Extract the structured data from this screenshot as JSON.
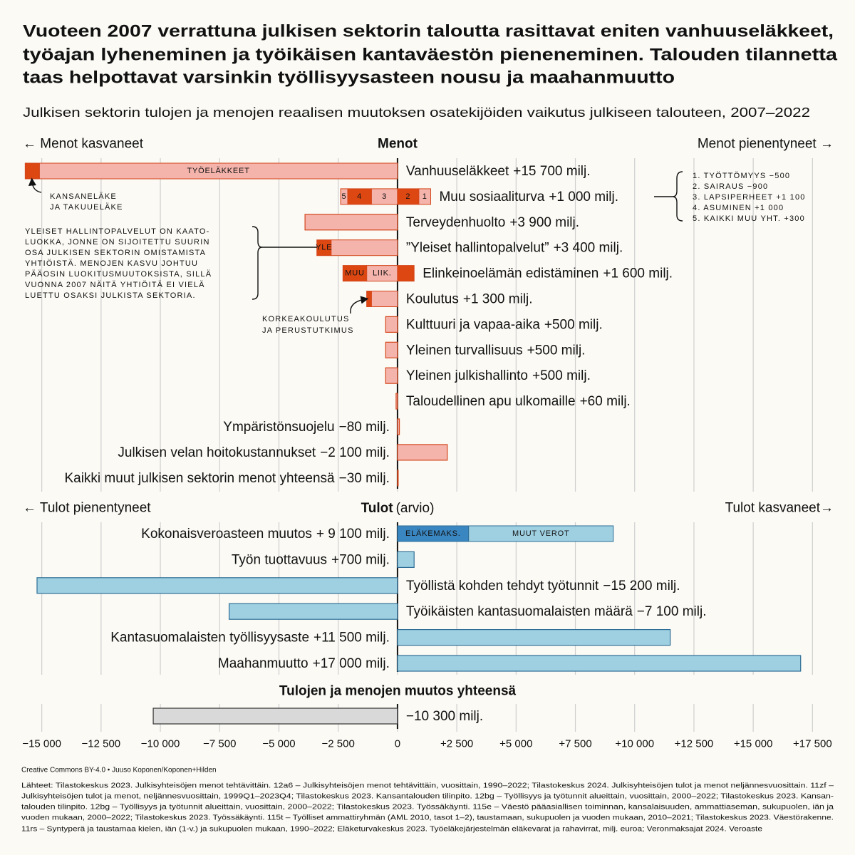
{
  "title": [
    "Vuoteen 2007 verrattuna julkisen sektorin taloutta rasittavat eniten vanhuuseläkkeet,",
    "työajan lyheneminen ja työikäisen kantaväestön pieneneminen. Talouden tilannetta",
    "taas helpottavat varsinkin työllisyysasteen nousu ja maahanmuutto"
  ],
  "subtitle": "Julkisen sektorin tulojen ja menojen reaalisen muutoksen osatekijöiden vaikutus julkiseen talouteen, 2007–2022",
  "chart_data": [
    {
      "type": "bar",
      "title": "Menot",
      "left_label": "← Menot kasvaneet",
      "right_label": "Menot pienentyneet →",
      "xlim": [
        -18000,
        15500
      ],
      "xreverse": true,
      "grid": true,
      "color": "#f4b3ab",
      "stroke": "#d4471c",
      "categories": [
        "Vanhuuseläkkeet",
        "Muu sosiaaliturva",
        "Terveydenhuolto",
        "”Yleiset hallintopalvelut”",
        "Elinkeinoelämän edistäminen",
        "Koulutus",
        "Kulttuuri ja vapaa-aika",
        "Yleinen turvallisuus",
        "Yleinen julkishallinto",
        "Taloudellinen apu ulkomaille",
        "Ympäristönsuojelu",
        "Julkisen velan hoitokustannukset",
        "Kaikki muut julkisen sektorin menot yhteensä"
      ],
      "values": [
        15700,
        1000,
        3900,
        3400,
        1600,
        1300,
        500,
        500,
        500,
        60,
        -80,
        -2100,
        -30
      ],
      "value_labels": [
        "+15 700 milj.",
        "+1 000 milj.",
        "+3 900 milj.",
        "+3 400 milj.",
        "+1 600 milj.",
        "+1 300 milj.",
        "+500 milj.",
        "+500 milj.",
        "+500 milj.",
        "+60 milj.",
        "−80 milj.",
        "−2 100 milj.",
        "−30 milj."
      ],
      "segments": [
        [
          {
            "value": 15100,
            "label": "TYÖELÄKKEET",
            "color": "#f4b3ab"
          },
          {
            "value": 600,
            "color": "#dd4712"
          }
        ],
        [
          {
            "value": 1100,
            "label": "3",
            "color": "#f4b3ab"
          },
          {
            "value": 1000,
            "label": "4",
            "color": "#dd4712"
          },
          {
            "value": 300,
            "label": "5",
            "color": "#f4b3ab"
          },
          {
            "value": -900,
            "label": "2",
            "color": "#dd4712"
          },
          {
            "value": -500,
            "label": "1",
            "color": "#f4b3ab"
          }
        ],
        null,
        [
          {
            "value": 2800,
            "color": "#f4b3ab"
          },
          {
            "value": 600,
            "label": "YLE",
            "color": "#dd4712"
          }
        ],
        [
          {
            "value": 1300,
            "label": "LIIK.",
            "color": "#f4b3ab"
          },
          {
            "value": 1000,
            "label": "MUU",
            "color": "#dd4712"
          },
          {
            "value": -700,
            "color": "#dd4712"
          }
        ],
        [
          {
            "value": 1100,
            "color": "#f4b3ab"
          },
          {
            "value": 200,
            "color": "#dd4712"
          }
        ],
        null,
        null,
        null,
        null,
        null,
        null,
        null
      ],
      "annotations": [
        [
          "KANSANELÄKE",
          "JA TAKUUELÄKE"
        ],
        [
          "1. TYÖTTÖMYYS −500",
          "2. SAIRAUS −900",
          "3. LAPSIPERHEET +1 100",
          "4. ASUMINEN +1 000",
          "5. KAIKKI MUU YHT. +300"
        ],
        [
          "YLEISET HALLINTOPALVELUT ON KAATO-",
          "LUOKKA, JONNE ON SIJOITETTU SUURIN",
          "OSA JULKISEN SEKTORIN OMISTAMISTA",
          "YHTIÖISTÄ. MENOJEN KASVU JOHTUU",
          "PÄÄOSIN LUOKITUSMUUTOKSISTA, SILLÄ",
          "VUONNA 2007 NÄITÄ YHTIÖITÄ EI VIELÄ",
          "LUETTU OSAKSI JULKISTA SEKTORIA."
        ],
        [
          "KORKEAKOULUTUS",
          "JA PERUSTUTKIMUS"
        ]
      ]
    },
    {
      "type": "bar",
      "title": "Tulot",
      "title_note": "(arvio)",
      "left_label": "← Tulot pienentyneet",
      "right_label": "Tulot kasvaneet→",
      "xlim": [
        -15500,
        18000
      ],
      "grid": true,
      "color": "#9fd0e2",
      "stroke": "#2e6e96",
      "categories": [
        "Kokonaisveroasteen muutos",
        "Työn tuottavuus",
        "Työllistä kohden tehdyt työtunnit",
        "Työikäisten kantasuomalaisten määrä",
        "Kantasuomalaisten työllisyysaste",
        "Maahanmuutto"
      ],
      "values": [
        9100,
        700,
        -15200,
        -7100,
        11500,
        17000
      ],
      "value_labels": [
        "+ 9 100 milj.",
        "+700 milj.",
        "−15 200 milj.",
        "−7 100 milj.",
        "+11 500 milj.",
        "+17 000 milj."
      ],
      "segments": [
        [
          {
            "value": 3000,
            "label": "ELÄKEMAKS.",
            "color": "#3a86c0"
          },
          {
            "value": 6100,
            "label": "MUUT VEROT",
            "color": "#9fd0e2"
          }
        ],
        null,
        null,
        null,
        null,
        null
      ]
    },
    {
      "type": "bar",
      "title": "Tulojen ja menojen muutos yhteensä",
      "xlim": [
        -15500,
        18000
      ],
      "grid": true,
      "color": "#d9d9d9",
      "stroke": "#333333",
      "categories": [
        null
      ],
      "values": [
        -10300
      ],
      "value_labels": [
        "−10 300 milj."
      ],
      "xticks": [
        {
          "value": -15000,
          "label": "−15 000"
        },
        {
          "value": -12500,
          "label": "−12 500"
        },
        {
          "value": -10000,
          "label": "−10 000"
        },
        {
          "value": -7500,
          "label": "−7 500"
        },
        {
          "value": -5000,
          "label": "−5 000"
        },
        {
          "value": -2500,
          "label": "−2 500"
        },
        0,
        {
          "value": 2500,
          "label": "+2 500"
        },
        {
          "value": 5000,
          "label": "+5 000"
        },
        {
          "value": 7500,
          "label": "+7 500"
        },
        {
          "value": 10000,
          "label": "+10 000"
        },
        {
          "value": 12500,
          "label": "+12 500"
        },
        {
          "value": 15000,
          "label": "+15 000"
        },
        {
          "value": 17500,
          "label": "+17 500"
        }
      ]
    }
  ],
  "footer": {
    "license": "Creative Commons BY-4.0 • Juuso Koponen/Koponen+Hilden",
    "sources": [
      "Lähteet: Tilastokeskus 2023. Julkisyhteisöjen menot tehtävittäin. 12a6 – Julkisyhteisöjen menot tehtävittäin, vuosittain, 1990–2022; Tilastokeskus 2024. Julkisyhteisöjen tulot ja menot neljännesvuosittain. 11zf –",
      "Julkisyhteisöjen tulot ja menot, neljännesvuosittain, 1999Q1–2023Q4; Tilastokeskus 2023. Kansantalouden tilinpito. 12bg – Työllisyys ja työtunnit alueittain, vuosittain, 2000–2022; Tilastokeskus 2023. Kansan-",
      "talouden tilinpito. 12bg – Työllisyys ja työtunnit alueittain, vuosittain, 2000–2022; Tilastokeskus 2023. Työssäkäynti. 115e – Väestö pääasiallisen toiminnan, kansalaisuuden, ammattiaseman, sukupuolen, iän ja",
      "vuoden mukaan, 2000–2022; Tilastokeskus 2023. Työssäkäynti. 115t – Työlliset ammattiryhmän (AML 2010, tasot 1–2), taustamaan, sukupuolen ja vuoden mukaan, 2010–2021; Tilastokeskus 2023. Väestörakenne.",
      "11rs – Syntyperä ja taustamaa kielen, iän (1-v.) ja sukupuolen mukaan, 1990–2022; Eläketurvakeskus 2023. Työeläkejärjestelmän eläkevarat ja rahavirrat, milj. euroa; Veronmaksajat 2024. Veroaste"
    ]
  }
}
